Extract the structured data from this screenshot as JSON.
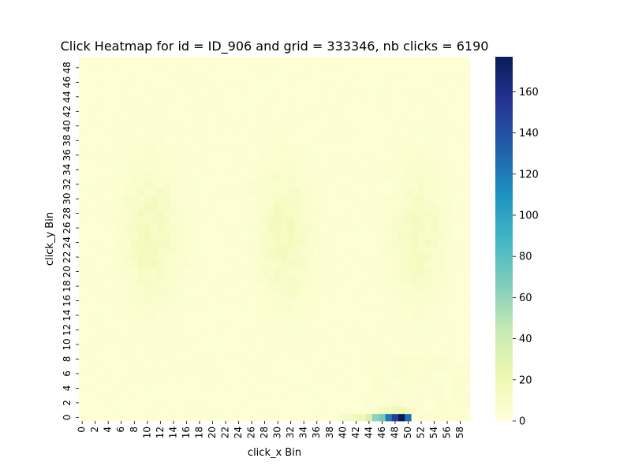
{
  "chart_data": {
    "type": "heatmap",
    "title": "Click Heatmap for id = ID_906 and grid = 333346, nb clicks = 6190",
    "xlabel": "click_x Bin",
    "ylabel": "click_y Bin",
    "n_cols": 60,
    "n_rows": 50,
    "x_tick_labels": [
      "0",
      "2",
      "4",
      "6",
      "8",
      "10",
      "12",
      "14",
      "16",
      "18",
      "20",
      "22",
      "24",
      "26",
      "28",
      "30",
      "32",
      "34",
      "36",
      "38",
      "40",
      "42",
      "44",
      "46",
      "48",
      "50",
      "52",
      "54",
      "56",
      "58"
    ],
    "y_tick_labels": [
      "0",
      "2",
      "4",
      "6",
      "8",
      "10",
      "12",
      "14",
      "16",
      "18",
      "20",
      "22",
      "24",
      "26",
      "28",
      "30",
      "32",
      "34",
      "36",
      "38",
      "40",
      "42",
      "44",
      "46",
      "48"
    ],
    "y_axis_origin": "bottom",
    "colormap": "YlGnBu",
    "color_range": [
      0,
      177
    ],
    "colorbar_ticks": [
      0,
      20,
      40,
      60,
      80,
      100,
      120,
      140,
      160
    ],
    "colorbar_tick_labels": [
      "0",
      "20",
      "40",
      "60",
      "80",
      "100",
      "120",
      "140",
      "160"
    ],
    "colors": [
      "#ffffd9",
      "#edf8b1",
      "#c7e9b4",
      "#7fcdbb",
      "#41b6c4",
      "#1d91c0",
      "#225ea8",
      "#253494",
      "#081d58"
    ],
    "background": 2,
    "clusters": [
      {
        "x_center": 10.5,
        "y_center": 25,
        "x_spread": 2.6,
        "y_spread": 6,
        "peak": 12
      },
      {
        "x_center": 31,
        "y_center": 25,
        "x_spread": 2.6,
        "y_spread": 6,
        "peak": 11
      },
      {
        "x_center": 51.5,
        "y_center": 25,
        "x_spread": 2.6,
        "y_spread": 6,
        "peak": 10
      }
    ],
    "hot_cells": [
      {
        "x": 40,
        "y": 0,
        "value": 8
      },
      {
        "x": 41,
        "y": 0,
        "value": 12
      },
      {
        "x": 42,
        "y": 0,
        "value": 18
      },
      {
        "x": 43,
        "y": 0,
        "value": 22
      },
      {
        "x": 44,
        "y": 0,
        "value": 35
      },
      {
        "x": 45,
        "y": 0,
        "value": 62
      },
      {
        "x": 46,
        "y": 0,
        "value": 70
      },
      {
        "x": 47,
        "y": 0,
        "value": 120
      },
      {
        "x": 48,
        "y": 0,
        "value": 150
      },
      {
        "x": 49,
        "y": 0,
        "value": 177
      },
      {
        "x": 50,
        "y": 0,
        "value": 125
      },
      {
        "x": 47,
        "y": 1,
        "value": 16
      },
      {
        "x": 48,
        "y": 1,
        "value": 18
      },
      {
        "x": 49,
        "y": 1,
        "value": 20
      },
      {
        "x": 46,
        "y": 1,
        "value": 14
      },
      {
        "x": 50,
        "y": 1,
        "value": 12
      }
    ]
  }
}
